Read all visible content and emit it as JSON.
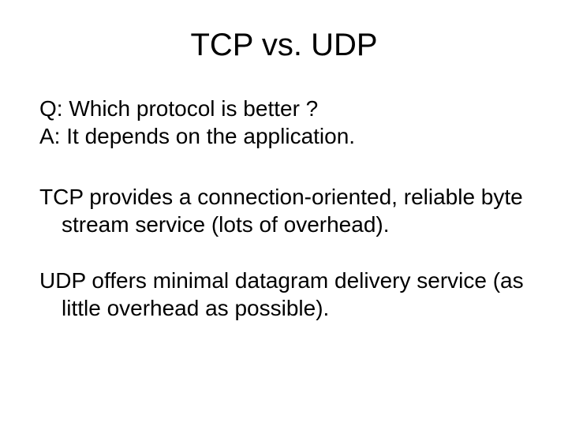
{
  "slide": {
    "title": "TCP vs. UDP",
    "question": "Q: Which protocol is better ?",
    "answer": "A: It depends on the application.",
    "para1": "TCP provides a connection-oriented, reliable byte stream service (lots of overhead).",
    "para2": "UDP offers minimal datagram delivery service (as little overhead as possible).",
    "title_fontsize": 40,
    "body_fontsize": 28,
    "text_color": "#000000",
    "background_color": "#ffffff"
  }
}
